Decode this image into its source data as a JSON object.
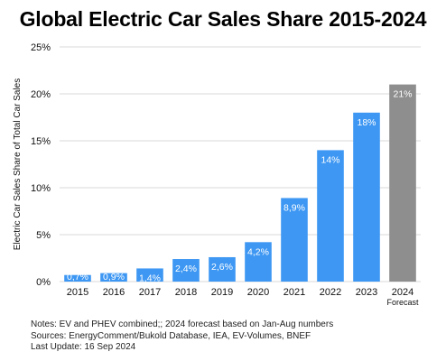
{
  "chart_data": {
    "type": "bar",
    "title": "Global Electric Car Sales Share 2015-2024",
    "ylabel": "Electric Car Sales Share of Total Car Sales",
    "xlabel": "",
    "ylim": [
      0,
      25
    ],
    "yticks": [
      0,
      5,
      10,
      15,
      20,
      25
    ],
    "ytick_labels": [
      "0%",
      "5%",
      "10%",
      "15%",
      "20%",
      "25%"
    ],
    "grid": true,
    "categories": [
      "2015",
      "2016",
      "2017",
      "2018",
      "2019",
      "2020",
      "2021",
      "2022",
      "2023",
      "2024"
    ],
    "category_sublabels": [
      "",
      "",
      "",
      "",
      "",
      "",
      "",
      "",
      "",
      "Forecast"
    ],
    "values": [
      0.7,
      0.9,
      1.4,
      2.4,
      2.6,
      4.2,
      8.9,
      14,
      18,
      21
    ],
    "data_labels": [
      "0,7%",
      "0,9%",
      "1,4%",
      "2,4%",
      "2,6%",
      "4,2%",
      "8,9%",
      "14%",
      "18%",
      "21%"
    ],
    "is_forecast": [
      false,
      false,
      false,
      false,
      false,
      false,
      false,
      false,
      false,
      true
    ],
    "colors": {
      "actual": "#3d97f3",
      "forecast": "#8e8e8e",
      "grid": "#d9d9d9",
      "data_label": "#ffffff"
    }
  },
  "notes": {
    "line1": "Notes: EV and PHEV combined;; 2024 forecast based on Jan-Aug numbers",
    "line2": "Sources: EnergyComment/Bukold Database, IEA, EV-Volumes, BNEF",
    "line3": "Last Update: 16 Sep 2024"
  }
}
